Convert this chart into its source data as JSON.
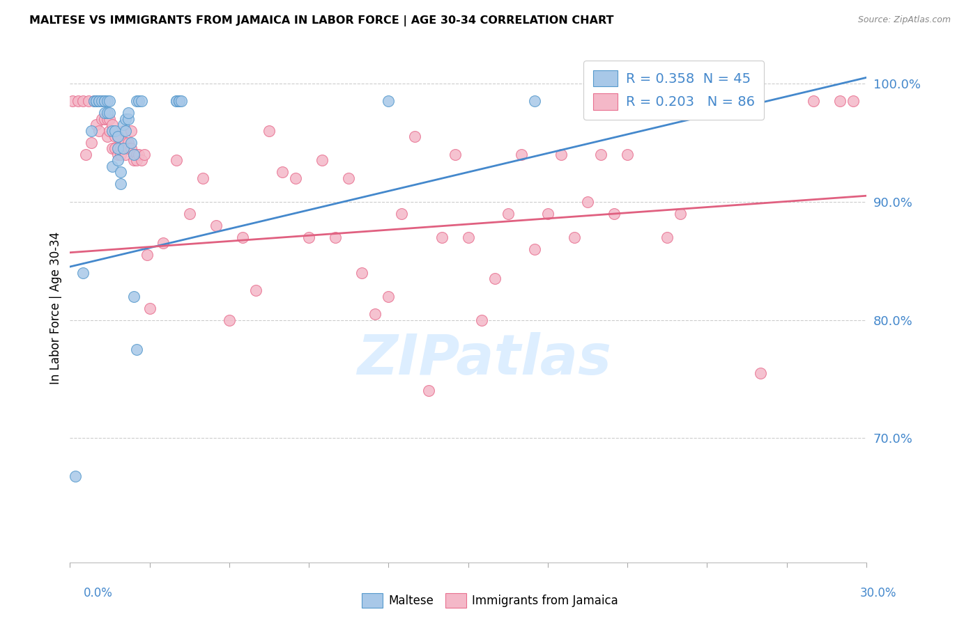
{
  "title": "MALTESE VS IMMIGRANTS FROM JAMAICA IN LABOR FORCE | AGE 30-34 CORRELATION CHART",
  "source": "Source: ZipAtlas.com",
  "ylabel": "In Labor Force | Age 30-34",
  "ytick_labels": [
    "100.0%",
    "90.0%",
    "80.0%",
    "70.0%"
  ],
  "ytick_values": [
    1.0,
    0.9,
    0.8,
    0.7
  ],
  "xlim": [
    0.0,
    0.3
  ],
  "ylim": [
    0.595,
    1.025
  ],
  "legend_text_1": "R = 0.358  N = 45",
  "legend_text_2": "R = 0.203   N = 86",
  "blue_fill": "#a8c8e8",
  "blue_edge": "#5599cc",
  "pink_fill": "#f4b8c8",
  "pink_edge": "#e87090",
  "trend_blue": "#4488cc",
  "trend_pink": "#e06080",
  "label_color": "#4488cc",
  "watermark_color": "#ddeeff",
  "blue_scatter_x": [
    0.002,
    0.005,
    0.008,
    0.009,
    0.01,
    0.01,
    0.011,
    0.011,
    0.012,
    0.013,
    0.013,
    0.013,
    0.014,
    0.014,
    0.015,
    0.015,
    0.016,
    0.016,
    0.017,
    0.018,
    0.018,
    0.018,
    0.019,
    0.019,
    0.02,
    0.02,
    0.021,
    0.021,
    0.022,
    0.022,
    0.023,
    0.024,
    0.024,
    0.025,
    0.025,
    0.026,
    0.027,
    0.04,
    0.04,
    0.041,
    0.041,
    0.042,
    0.12,
    0.175,
    0.225
  ],
  "blue_scatter_y": [
    0.668,
    0.84,
    0.96,
    0.985,
    0.985,
    0.985,
    0.985,
    0.985,
    0.985,
    0.985,
    0.985,
    0.975,
    0.985,
    0.975,
    0.985,
    0.975,
    0.96,
    0.93,
    0.96,
    0.955,
    0.945,
    0.935,
    0.925,
    0.915,
    0.965,
    0.945,
    0.97,
    0.96,
    0.97,
    0.975,
    0.95,
    0.94,
    0.82,
    0.775,
    0.985,
    0.985,
    0.985,
    0.985,
    0.985,
    0.985,
    0.985,
    0.985,
    0.985,
    0.985,
    0.985
  ],
  "pink_scatter_x": [
    0.001,
    0.003,
    0.005,
    0.006,
    0.007,
    0.008,
    0.009,
    0.01,
    0.01,
    0.011,
    0.012,
    0.012,
    0.013,
    0.014,
    0.014,
    0.015,
    0.015,
    0.016,
    0.016,
    0.017,
    0.017,
    0.018,
    0.018,
    0.019,
    0.019,
    0.02,
    0.02,
    0.021,
    0.021,
    0.022,
    0.022,
    0.023,
    0.023,
    0.024,
    0.024,
    0.025,
    0.025,
    0.026,
    0.027,
    0.028,
    0.029,
    0.03,
    0.035,
    0.04,
    0.045,
    0.05,
    0.055,
    0.06,
    0.065,
    0.07,
    0.075,
    0.08,
    0.085,
    0.09,
    0.095,
    0.1,
    0.105,
    0.11,
    0.115,
    0.12,
    0.125,
    0.13,
    0.135,
    0.14,
    0.145,
    0.15,
    0.155,
    0.16,
    0.165,
    0.17,
    0.175,
    0.18,
    0.185,
    0.19,
    0.195,
    0.2,
    0.205,
    0.21,
    0.215,
    0.22,
    0.225,
    0.23,
    0.26,
    0.28,
    0.29,
    0.295
  ],
  "pink_scatter_y": [
    0.985,
    0.985,
    0.985,
    0.94,
    0.985,
    0.95,
    0.985,
    0.985,
    0.965,
    0.96,
    0.985,
    0.97,
    0.97,
    0.97,
    0.955,
    0.96,
    0.97,
    0.965,
    0.945,
    0.955,
    0.945,
    0.955,
    0.94,
    0.945,
    0.94,
    0.96,
    0.945,
    0.95,
    0.94,
    0.95,
    0.945,
    0.96,
    0.945,
    0.94,
    0.935,
    0.94,
    0.935,
    0.94,
    0.935,
    0.94,
    0.855,
    0.81,
    0.865,
    0.935,
    0.89,
    0.92,
    0.88,
    0.8,
    0.87,
    0.825,
    0.96,
    0.925,
    0.92,
    0.87,
    0.935,
    0.87,
    0.92,
    0.84,
    0.805,
    0.82,
    0.89,
    0.955,
    0.74,
    0.87,
    0.94,
    0.87,
    0.8,
    0.835,
    0.89,
    0.94,
    0.86,
    0.89,
    0.94,
    0.87,
    0.9,
    0.94,
    0.89,
    0.94,
    0.985,
    0.985,
    0.87,
    0.89,
    0.755,
    0.985,
    0.985,
    0.985
  ],
  "blue_trend_x": [
    0.0,
    0.3
  ],
  "blue_trend_y": [
    0.845,
    1.005
  ],
  "pink_trend_x": [
    0.0,
    0.3
  ],
  "pink_trend_y": [
    0.857,
    0.905
  ]
}
